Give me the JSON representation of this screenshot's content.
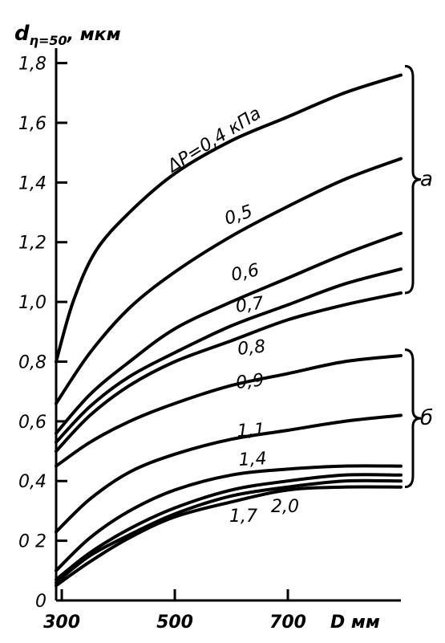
{
  "chart_data": {
    "type": "line",
    "ylabel_main": "d",
    "ylabel_sub": "η=50",
    "ylabel_unit": ", мкм",
    "xlabel": "D мм",
    "xlim": [
      290,
      900
    ],
    "ylim": [
      0,
      1.85
    ],
    "yticks": [
      "0",
      "0 2",
      "0,4",
      "0,6",
      "0,8",
      "1,0",
      "1,2",
      "1,4",
      "1,6",
      "1,8"
    ],
    "ytick_values": [
      0,
      0.2,
      0.4,
      0.6,
      0.8,
      1.0,
      1.2,
      1.4,
      1.6,
      1.8
    ],
    "xticks": [
      "300",
      "500",
      "700"
    ],
    "xtick_values": [
      300,
      500,
      700
    ],
    "series": [
      {
        "label": "ΔP=0,4 кПа",
        "x": [
          290,
          320,
          360,
          420,
          500,
          600,
          700,
          800,
          900
        ],
        "y": [
          0.8,
          1.0,
          1.17,
          1.3,
          1.43,
          1.54,
          1.62,
          1.7,
          1.76
        ]
      },
      {
        "label": "0,5",
        "x": [
          290,
          350,
          420,
          500,
          600,
          700,
          800,
          900
        ],
        "y": [
          0.66,
          0.83,
          0.98,
          1.1,
          1.22,
          1.32,
          1.41,
          1.48
        ]
      },
      {
        "label": "0,6",
        "x": [
          290,
          350,
          420,
          500,
          600,
          700,
          800,
          900
        ],
        "y": [
          0.56,
          0.69,
          0.8,
          0.91,
          1.0,
          1.08,
          1.16,
          1.23
        ]
      },
      {
        "label": "0,7",
        "x": [
          290,
          350,
          420,
          500,
          600,
          700,
          800,
          900
        ],
        "y": [
          0.53,
          0.65,
          0.75,
          0.83,
          0.92,
          0.99,
          1.06,
          1.11
        ]
      },
      {
        "label": "",
        "x": [
          290,
          350,
          420,
          500,
          600,
          700,
          800,
          900
        ],
        "y": [
          0.5,
          0.62,
          0.72,
          0.8,
          0.87,
          0.94,
          0.99,
          1.03
        ]
      },
      {
        "label": "0,8",
        "x": [
          290,
          350,
          420,
          500,
          600,
          700,
          800,
          900
        ],
        "y": [
          0.45,
          0.53,
          0.6,
          0.66,
          0.72,
          0.76,
          0.8,
          0.82
        ]
      },
      {
        "label": "0,9",
        "x": [
          290,
          350,
          420,
          500,
          600,
          700,
          800,
          900
        ],
        "y": [
          0.23,
          0.34,
          0.43,
          0.49,
          0.54,
          0.57,
          0.6,
          0.62
        ]
      },
      {
        "label": "1,1",
        "x": [
          290,
          350,
          420,
          500,
          600,
          700,
          800,
          900
        ],
        "y": [
          0.1,
          0.21,
          0.3,
          0.37,
          0.42,
          0.44,
          0.45,
          0.45
        ]
      },
      {
        "label": "1,4",
        "x": [
          290,
          350,
          420,
          500,
          600,
          700,
          800,
          900
        ],
        "y": [
          0.07,
          0.16,
          0.24,
          0.31,
          0.37,
          0.4,
          0.42,
          0.42
        ]
      },
      {
        "label": "1,7",
        "x": [
          290,
          350,
          420,
          500,
          600,
          700,
          800,
          900
        ],
        "y": [
          0.06,
          0.15,
          0.22,
          0.29,
          0.35,
          0.38,
          0.4,
          0.4
        ]
      },
      {
        "label": "2,0",
        "x": [
          290,
          350,
          420,
          500,
          600,
          700,
          800,
          900
        ],
        "y": [
          0.05,
          0.13,
          0.21,
          0.28,
          0.33,
          0.37,
          0.38,
          0.38
        ]
      }
    ],
    "groups": [
      {
        "label": "а",
        "ymin": 1.03,
        "ymax": 1.79
      },
      {
        "label": "б",
        "ymin": 0.38,
        "ymax": 0.84
      }
    ]
  }
}
